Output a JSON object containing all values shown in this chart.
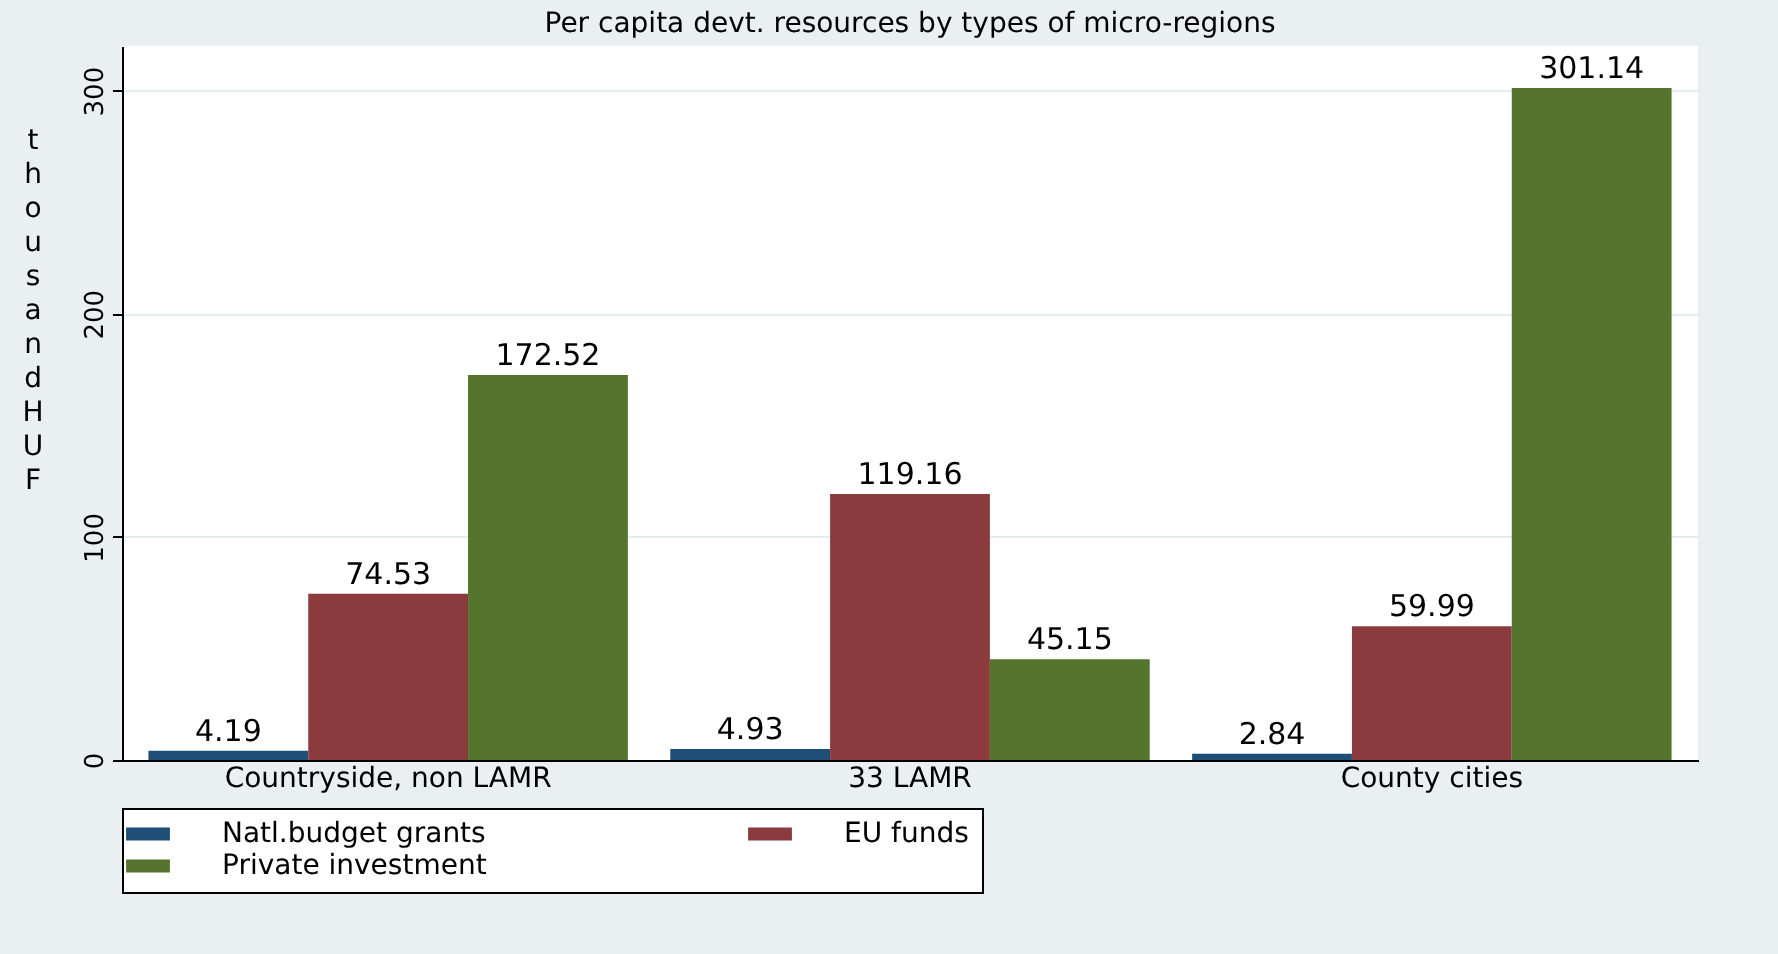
{
  "chart_data": {
    "type": "bar",
    "title": "Per capita devt. resources by types of micro-regions",
    "ylabel": "thousand HUF",
    "categories": [
      "Countryside, non LAMR",
      "33 LAMR",
      "County cities"
    ],
    "series": [
      {
        "name": "Natl.budget grants",
        "color": "#1f4e79",
        "values": [
          4.19,
          4.93,
          2.84
        ]
      },
      {
        "name": "EU funds",
        "color": "#8b3a3e",
        "values": [
          74.53,
          119.16,
          59.99
        ]
      },
      {
        "name": "Private investment",
        "color": "#55752f",
        "values": [
          172.52,
          45.15,
          301.14
        ]
      }
    ],
    "ylim": [
      0,
      320
    ],
    "yticks": [
      0,
      100,
      200,
      300
    ],
    "grid": "y",
    "legend": "bottom",
    "data_labels": true
  }
}
